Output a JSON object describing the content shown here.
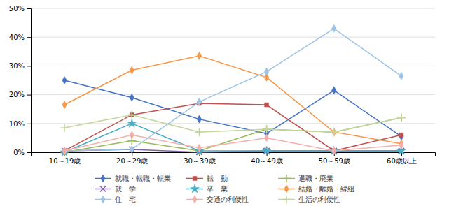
{
  "chart_data": {
    "type": "line",
    "categories": [
      "10～19歳",
      "20～29歳",
      "30～39歳",
      "40～49歳",
      "50～59歳",
      "60歳以上"
    ],
    "series": [
      {
        "name": "就職・転職・転業",
        "color": "#4472C4",
        "marker": "diamond",
        "values": [
          25,
          19,
          11.5,
          6.5,
          21.5,
          5.5
        ]
      },
      {
        "name": "転　動",
        "color": "#C0504D",
        "marker": "square",
        "values": [
          0.5,
          13,
          17,
          16.5,
          0.5,
          6
        ]
      },
      {
        "name": "退職・廃業",
        "color": "#9BBB59",
        "marker": "plus",
        "values": [
          0,
          4,
          0.5,
          8,
          7,
          12
        ]
      },
      {
        "name": "就　学",
        "color": "#8064A2",
        "marker": "x",
        "values": [
          0.5,
          1,
          0,
          0.5,
          0.5,
          0.5
        ]
      },
      {
        "name": "卒　業",
        "color": "#4BACC6",
        "marker": "star",
        "values": [
          0,
          10,
          0.5,
          0.5,
          0.5,
          0.5
        ]
      },
      {
        "name": "結婚・離婚・縁組",
        "color": "#F79646",
        "marker": "diamond",
        "values": [
          16.5,
          28.5,
          33.5,
          26,
          7,
          3
        ]
      },
      {
        "name": "住　宅",
        "color": "#9DC3E6",
        "marker": "diamond",
        "values": [
          0.5,
          1,
          17.5,
          28,
          43,
          26.5
        ]
      },
      {
        "name": "交通の利便性",
        "color": "#F4AFAB",
        "marker": "diamond",
        "values": [
          0.5,
          6,
          1.5,
          5,
          0.5,
          2.5
        ]
      },
      {
        "name": "生活の利便性",
        "color": "#C3D69B",
        "marker": "plus",
        "values": [
          8.5,
          13,
          7,
          8,
          7,
          12
        ]
      }
    ],
    "ylim": [
      0,
      50
    ],
    "yticks": [
      {
        "value": 0,
        "label": "0%"
      },
      {
        "value": 10,
        "label": "10%"
      },
      {
        "value": 20,
        "label": "20%"
      },
      {
        "value": 30,
        "label": "30%"
      },
      {
        "value": 40,
        "label": "40%"
      },
      {
        "value": 50,
        "label": "50%"
      }
    ],
    "grid": true,
    "legend": "bottom"
  }
}
